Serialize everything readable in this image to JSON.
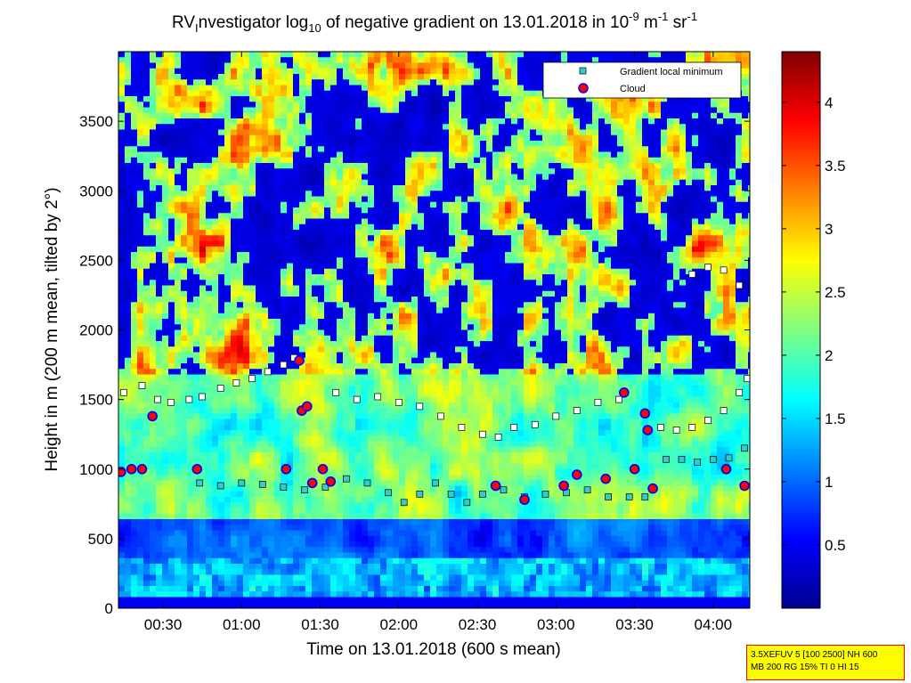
{
  "chart_data": {
    "type": "heatmap",
    "title": {
      "prefix": "RV",
      "sub1": "I",
      "part1": "nvestigator log",
      "sub2": "10",
      "part2": " of negative gradient on 13.01.2018 in 10",
      "sup1": "-9",
      "part3": " m",
      "sup2": "-1",
      "part4": " sr",
      "sup3": "-1"
    },
    "xlabel": "Time on 13.01.2018 (600 s mean)",
    "ylabel": "Height in m (200 m mean, tilted by 2°)",
    "x_ticks": [
      "00:30",
      "01:00",
      "01:30",
      "02:00",
      "02:30",
      "03:00",
      "03:30",
      "04:00"
    ],
    "x_tick_minutes": [
      30,
      60,
      90,
      120,
      150,
      180,
      210,
      240
    ],
    "xlim_minutes": [
      13,
      254
    ],
    "y_ticks": [
      0,
      500,
      1000,
      1500,
      2000,
      2500,
      3000,
      3500
    ],
    "ylim": [
      0,
      4000
    ],
    "colorbar": {
      "ticks": [
        "0.5",
        "1",
        "1.5",
        "2",
        "2.5",
        "3",
        "3.5",
        "4"
      ],
      "tick_values": [
        0.5,
        1,
        1.5,
        2,
        2.5,
        3,
        3.5,
        4
      ],
      "range": [
        0,
        4.4
      ],
      "colormap": "jet"
    },
    "legend": {
      "position": "top-right",
      "entries": [
        {
          "label": "Gradient local minimum",
          "color": "#33cccc",
          "marker": "square"
        },
        {
          "label": "Cloud",
          "color": "#ff0000",
          "edge": "#0000ff",
          "marker": "circle"
        }
      ]
    },
    "cloud_points": [
      {
        "t": 14,
        "h": 980
      },
      {
        "t": 18,
        "h": 1000
      },
      {
        "t": 22,
        "h": 1000
      },
      {
        "t": 26,
        "h": 1380
      },
      {
        "t": 43,
        "h": 1000
      },
      {
        "t": 77,
        "h": 1000
      },
      {
        "t": 82,
        "h": 1780
      },
      {
        "t": 83,
        "h": 1420
      },
      {
        "t": 85,
        "h": 1450
      },
      {
        "t": 87,
        "h": 900
      },
      {
        "t": 91,
        "h": 1000
      },
      {
        "t": 94,
        "h": 910
      },
      {
        "t": 157,
        "h": 880
      },
      {
        "t": 168,
        "h": 780
      },
      {
        "t": 183,
        "h": 880
      },
      {
        "t": 188,
        "h": 960
      },
      {
        "t": 199,
        "h": 930
      },
      {
        "t": 206,
        "h": 1550
      },
      {
        "t": 210,
        "h": 1000
      },
      {
        "t": 214,
        "h": 1400
      },
      {
        "t": 215,
        "h": 1280
      },
      {
        "t": 217,
        "h": 860
      },
      {
        "t": 245,
        "h": 1000
      },
      {
        "t": 252,
        "h": 880
      }
    ],
    "minima_series": [
      {
        "name": "",
        "points": [
          [
            15,
            1550
          ],
          [
            22,
            1600
          ],
          [
            28,
            1500
          ],
          [
            33,
            1480
          ],
          [
            40,
            1500
          ],
          [
            45,
            1520
          ],
          [
            52,
            1580
          ],
          [
            58,
            1620
          ],
          [
            64,
            1650
          ],
          [
            70,
            1700
          ],
          [
            76,
            1750
          ],
          [
            80,
            1800
          ]
        ]
      },
      {
        "name": "",
        "points": [
          [
            44,
            900
          ],
          [
            52,
            880
          ],
          [
            60,
            900
          ],
          [
            68,
            890
          ],
          [
            76,
            870
          ],
          [
            84,
            850
          ],
          [
            92,
            870
          ],
          [
            100,
            930
          ],
          [
            108,
            900
          ],
          [
            116,
            830
          ],
          [
            122,
            760
          ],
          [
            128,
            820
          ],
          [
            134,
            900
          ],
          [
            140,
            820
          ],
          [
            146,
            760
          ],
          [
            152,
            820
          ],
          [
            160,
            850
          ],
          [
            168,
            800
          ],
          [
            176,
            820
          ],
          [
            184,
            830
          ],
          [
            192,
            850
          ],
          [
            200,
            800
          ],
          [
            208,
            800
          ],
          [
            214,
            800
          ]
        ]
      },
      {
        "name": "",
        "points": [
          [
            96,
            1550
          ],
          [
            104,
            1500
          ],
          [
            112,
            1520
          ],
          [
            120,
            1480
          ],
          [
            128,
            1450
          ],
          [
            136,
            1380
          ],
          [
            144,
            1300
          ],
          [
            152,
            1250
          ],
          [
            158,
            1230
          ],
          [
            164,
            1300
          ],
          [
            172,
            1320
          ],
          [
            180,
            1380
          ],
          [
            188,
            1420
          ],
          [
            196,
            1480
          ],
          [
            204,
            1500
          ]
        ]
      },
      {
        "name": "",
        "points": [
          [
            220,
            1300
          ],
          [
            226,
            1280
          ],
          [
            232,
            1300
          ],
          [
            238,
            1350
          ],
          [
            244,
            1420
          ],
          [
            250,
            1550
          ],
          [
            253,
            1650
          ]
        ]
      },
      {
        "name": "",
        "points": [
          [
            232,
            2400
          ],
          [
            238,
            2450
          ],
          [
            244,
            2430
          ],
          [
            250,
            2320
          ]
        ]
      },
      {
        "name": "",
        "points": [
          [
            222,
            1070
          ],
          [
            228,
            1070
          ],
          [
            234,
            1050
          ],
          [
            240,
            1070
          ],
          [
            246,
            1080
          ],
          [
            252,
            1150
          ]
        ]
      }
    ]
  },
  "info_box": {
    "line1": "3.5XEFUV 5 [100 2500] NH 600",
    "line2": "MB 200 RG 15% TI 0 HI 15"
  }
}
